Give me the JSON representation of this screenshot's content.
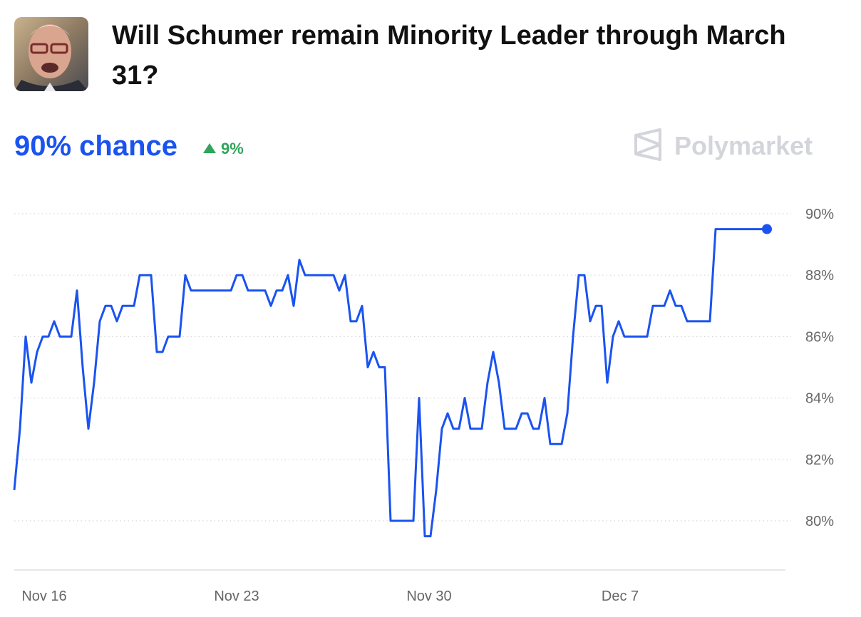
{
  "chart_data": {
    "type": "line",
    "title_line1": "Will Schumer remain Minority Leader through March",
    "title_line2": "31?",
    "headline": "90% chance",
    "change": "9%",
    "brand": "Polymarket",
    "color": "#1a53f0",
    "change_color": "#2ea55a",
    "grid": true,
    "xlim": [
      0,
      132
    ],
    "xticks": [
      {
        "value": 5.25,
        "label": "Nov 16"
      },
      {
        "value": 39,
        "label": "Nov 23"
      },
      {
        "value": 72.75,
        "label": "Nov 30"
      },
      {
        "value": 106.25,
        "label": "Dec 7"
      }
    ],
    "ylim": [
      78.4,
      90
    ],
    "yticks": [
      {
        "value": 80,
        "label": "80%"
      },
      {
        "value": 82,
        "label": "82%"
      },
      {
        "value": 84,
        "label": "84%"
      },
      {
        "value": 86,
        "label": "86%"
      },
      {
        "value": 88,
        "label": "88%"
      },
      {
        "value": 90,
        "label": "90%"
      }
    ],
    "values": [
      81,
      83,
      86,
      84.5,
      85.5,
      86,
      86,
      86.5,
      86,
      86,
      86,
      87.5,
      85,
      83,
      84.5,
      86.5,
      87,
      87,
      86.5,
      87,
      87,
      87,
      88,
      88,
      88,
      85.5,
      85.5,
      86,
      86,
      86,
      88,
      87.5,
      87.5,
      87.5,
      87.5,
      87.5,
      87.5,
      87.5,
      87.5,
      88,
      88,
      87.5,
      87.5,
      87.5,
      87.5,
      87,
      87.5,
      87.5,
      88,
      87,
      88.5,
      88,
      88,
      88,
      88,
      88,
      88,
      87.5,
      88,
      86.5,
      86.5,
      87,
      85,
      85.5,
      85,
      85,
      80,
      80,
      80,
      80,
      80,
      84,
      79.5,
      79.5,
      81,
      83,
      83.5,
      83,
      83,
      84,
      83,
      83,
      83,
      84.5,
      85.5,
      84.5,
      83,
      83,
      83,
      83.5,
      83.5,
      83,
      83,
      84,
      82.5,
      82.5,
      82.5,
      83.5,
      86,
      88,
      88,
      86.5,
      87,
      87,
      84.5,
      86,
      86.5,
      86,
      86,
      86,
      86,
      86,
      87,
      87,
      87,
      87.5,
      87,
      87,
      86.5,
      86.5,
      86.5,
      86.5,
      86.5,
      89.5,
      89.5,
      89.5,
      89.5,
      89.5,
      89.5,
      89.5,
      89.5,
      89.5,
      89.5
    ]
  }
}
